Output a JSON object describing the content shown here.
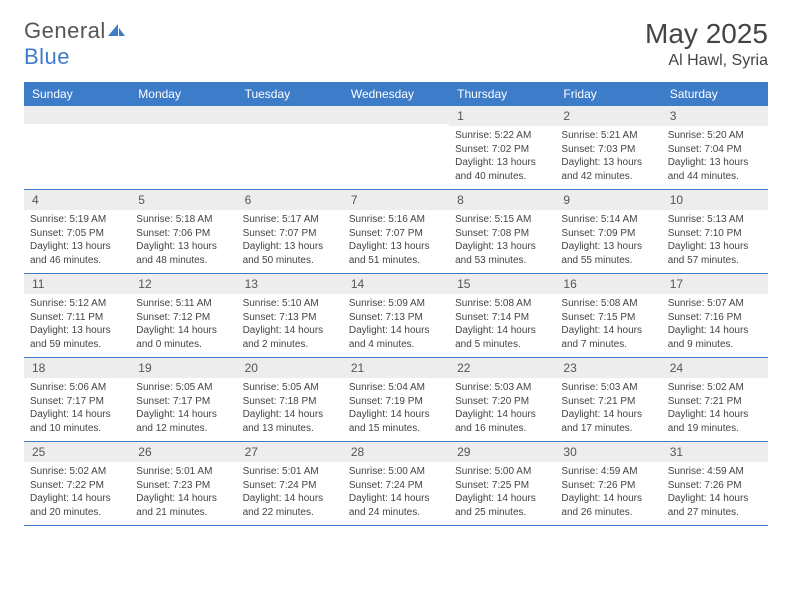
{
  "logo": {
    "text_general": "General",
    "text_blue": "Blue"
  },
  "header": {
    "month_title": "May 2025",
    "location": "Al Hawl, Syria"
  },
  "colors": {
    "header_bg": "#3d7cc9",
    "header_fg": "#ffffff",
    "daynum_bg": "#ededed",
    "border": "#3d7cc9"
  },
  "day_names": [
    "Sunday",
    "Monday",
    "Tuesday",
    "Wednesday",
    "Thursday",
    "Friday",
    "Saturday"
  ],
  "weeks": [
    [
      {
        "n": "",
        "sr": "",
        "ss": "",
        "dl": ""
      },
      {
        "n": "",
        "sr": "",
        "ss": "",
        "dl": ""
      },
      {
        "n": "",
        "sr": "",
        "ss": "",
        "dl": ""
      },
      {
        "n": "",
        "sr": "",
        "ss": "",
        "dl": ""
      },
      {
        "n": "1",
        "sr": "5:22 AM",
        "ss": "7:02 PM",
        "dl": "13 hours and 40 minutes."
      },
      {
        "n": "2",
        "sr": "5:21 AM",
        "ss": "7:03 PM",
        "dl": "13 hours and 42 minutes."
      },
      {
        "n": "3",
        "sr": "5:20 AM",
        "ss": "7:04 PM",
        "dl": "13 hours and 44 minutes."
      }
    ],
    [
      {
        "n": "4",
        "sr": "5:19 AM",
        "ss": "7:05 PM",
        "dl": "13 hours and 46 minutes."
      },
      {
        "n": "5",
        "sr": "5:18 AM",
        "ss": "7:06 PM",
        "dl": "13 hours and 48 minutes."
      },
      {
        "n": "6",
        "sr": "5:17 AM",
        "ss": "7:07 PM",
        "dl": "13 hours and 50 minutes."
      },
      {
        "n": "7",
        "sr": "5:16 AM",
        "ss": "7:07 PM",
        "dl": "13 hours and 51 minutes."
      },
      {
        "n": "8",
        "sr": "5:15 AM",
        "ss": "7:08 PM",
        "dl": "13 hours and 53 minutes."
      },
      {
        "n": "9",
        "sr": "5:14 AM",
        "ss": "7:09 PM",
        "dl": "13 hours and 55 minutes."
      },
      {
        "n": "10",
        "sr": "5:13 AM",
        "ss": "7:10 PM",
        "dl": "13 hours and 57 minutes."
      }
    ],
    [
      {
        "n": "11",
        "sr": "5:12 AM",
        "ss": "7:11 PM",
        "dl": "13 hours and 59 minutes."
      },
      {
        "n": "12",
        "sr": "5:11 AM",
        "ss": "7:12 PM",
        "dl": "14 hours and 0 minutes."
      },
      {
        "n": "13",
        "sr": "5:10 AM",
        "ss": "7:13 PM",
        "dl": "14 hours and 2 minutes."
      },
      {
        "n": "14",
        "sr": "5:09 AM",
        "ss": "7:13 PM",
        "dl": "14 hours and 4 minutes."
      },
      {
        "n": "15",
        "sr": "5:08 AM",
        "ss": "7:14 PM",
        "dl": "14 hours and 5 minutes."
      },
      {
        "n": "16",
        "sr": "5:08 AM",
        "ss": "7:15 PM",
        "dl": "14 hours and 7 minutes."
      },
      {
        "n": "17",
        "sr": "5:07 AM",
        "ss": "7:16 PM",
        "dl": "14 hours and 9 minutes."
      }
    ],
    [
      {
        "n": "18",
        "sr": "5:06 AM",
        "ss": "7:17 PM",
        "dl": "14 hours and 10 minutes."
      },
      {
        "n": "19",
        "sr": "5:05 AM",
        "ss": "7:17 PM",
        "dl": "14 hours and 12 minutes."
      },
      {
        "n": "20",
        "sr": "5:05 AM",
        "ss": "7:18 PM",
        "dl": "14 hours and 13 minutes."
      },
      {
        "n": "21",
        "sr": "5:04 AM",
        "ss": "7:19 PM",
        "dl": "14 hours and 15 minutes."
      },
      {
        "n": "22",
        "sr": "5:03 AM",
        "ss": "7:20 PM",
        "dl": "14 hours and 16 minutes."
      },
      {
        "n": "23",
        "sr": "5:03 AM",
        "ss": "7:21 PM",
        "dl": "14 hours and 17 minutes."
      },
      {
        "n": "24",
        "sr": "5:02 AM",
        "ss": "7:21 PM",
        "dl": "14 hours and 19 minutes."
      }
    ],
    [
      {
        "n": "25",
        "sr": "5:02 AM",
        "ss": "7:22 PM",
        "dl": "14 hours and 20 minutes."
      },
      {
        "n": "26",
        "sr": "5:01 AM",
        "ss": "7:23 PM",
        "dl": "14 hours and 21 minutes."
      },
      {
        "n": "27",
        "sr": "5:01 AM",
        "ss": "7:24 PM",
        "dl": "14 hours and 22 minutes."
      },
      {
        "n": "28",
        "sr": "5:00 AM",
        "ss": "7:24 PM",
        "dl": "14 hours and 24 minutes."
      },
      {
        "n": "29",
        "sr": "5:00 AM",
        "ss": "7:25 PM",
        "dl": "14 hours and 25 minutes."
      },
      {
        "n": "30",
        "sr": "4:59 AM",
        "ss": "7:26 PM",
        "dl": "14 hours and 26 minutes."
      },
      {
        "n": "31",
        "sr": "4:59 AM",
        "ss": "7:26 PM",
        "dl": "14 hours and 27 minutes."
      }
    ]
  ],
  "labels": {
    "sunrise": "Sunrise: ",
    "sunset": "Sunset: ",
    "daylight": "Daylight: "
  }
}
